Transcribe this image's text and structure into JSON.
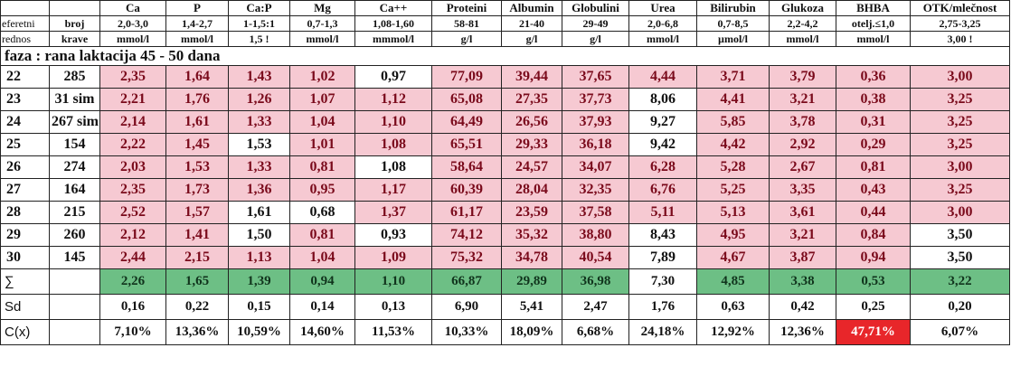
{
  "header": {
    "row1": [
      "",
      "",
      "Ca",
      "P",
      "Ca:P",
      "Mg",
      "Ca++",
      "Proteini",
      "Albumin",
      "Globulini",
      "Urea",
      "Bilirubin",
      "Glukoza",
      "BHBA",
      "OTK/mlečnost"
    ],
    "row2": [
      "eferetni",
      "broj",
      "2,0-3,0",
      "1,4-2,7",
      "1-1,5:1",
      "0,7-1,3",
      "1,08-1,60",
      "58-81",
      "21-40",
      "29-49",
      "2,0-6,8",
      "0,7-8,5",
      "2,2-4,2",
      "otelj.≤1,0",
      "2,75-3,25"
    ],
    "row3": [
      "rednos",
      "krave",
      "mmol/l",
      "mmol/l",
      "1,5 !",
      "mmol/l",
      "mmmol/l",
      "g/l",
      "g/l",
      "g/l",
      "mmol/l",
      "µmol/l",
      "mmol/l",
      "mmol/l",
      "3,00 !"
    ]
  },
  "phase_label": "faza : rana laktacija 45 - 50 dana",
  "rows": [
    {
      "rb": "22",
      "krava": "285",
      "values": [
        "2,35",
        "1,64",
        "1,43",
        "1,02",
        "0,97",
        "77,09",
        "39,44",
        "37,65",
        "4,44",
        "3,71",
        "3,79",
        "0,36",
        "3,00"
      ],
      "highlight": [
        true,
        true,
        true,
        true,
        false,
        true,
        true,
        true,
        true,
        true,
        true,
        true,
        true
      ]
    },
    {
      "rb": "23",
      "krava": "31 sim",
      "values": [
        "2,21",
        "1,76",
        "1,26",
        "1,07",
        "1,12",
        "65,08",
        "27,35",
        "37,73",
        "8,06",
        "4,41",
        "3,21",
        "0,38",
        "3,25"
      ],
      "highlight": [
        true,
        true,
        true,
        true,
        true,
        true,
        true,
        true,
        false,
        true,
        true,
        true,
        true
      ]
    },
    {
      "rb": "24",
      "krava": "267 sim",
      "values": [
        "2,14",
        "1,61",
        "1,33",
        "1,04",
        "1,10",
        "64,49",
        "26,56",
        "37,93",
        "9,27",
        "5,85",
        "3,78",
        "0,31",
        "3,25"
      ],
      "highlight": [
        true,
        true,
        true,
        true,
        true,
        true,
        true,
        true,
        false,
        true,
        true,
        true,
        true
      ]
    },
    {
      "rb": "25",
      "krava": "154",
      "values": [
        "2,22",
        "1,45",
        "1,53",
        "1,01",
        "1,08",
        "65,51",
        "29,33",
        "36,18",
        "9,42",
        "4,42",
        "2,92",
        "0,29",
        "3,25"
      ],
      "highlight": [
        true,
        true,
        false,
        true,
        true,
        true,
        true,
        true,
        false,
        true,
        true,
        true,
        true
      ]
    },
    {
      "rb": "26",
      "krava": "274",
      "values": [
        "2,03",
        "1,53",
        "1,33",
        "0,81",
        "1,08",
        "58,64",
        "24,57",
        "34,07",
        "6,28",
        "5,28",
        "2,67",
        "0,81",
        "3,00"
      ],
      "highlight": [
        true,
        true,
        true,
        true,
        false,
        true,
        true,
        true,
        true,
        true,
        true,
        true,
        true
      ]
    },
    {
      "rb": "27",
      "krava": "164",
      "values": [
        "2,35",
        "1,73",
        "1,36",
        "0,95",
        "1,17",
        "60,39",
        "28,04",
        "32,35",
        "6,76",
        "5,25",
        "3,35",
        "0,43",
        "3,25"
      ],
      "highlight": [
        true,
        true,
        true,
        true,
        true,
        true,
        true,
        true,
        true,
        true,
        true,
        true,
        true
      ]
    },
    {
      "rb": "28",
      "krava": "215",
      "values": [
        "2,52",
        "1,57",
        "1,61",
        "0,68",
        "1,37",
        "61,17",
        "23,59",
        "37,58",
        "5,11",
        "5,13",
        "3,61",
        "0,44",
        "3,00"
      ],
      "highlight": [
        true,
        true,
        false,
        false,
        true,
        true,
        true,
        true,
        true,
        true,
        true,
        true,
        true
      ]
    },
    {
      "rb": "29",
      "krava": "260",
      "values": [
        "2,12",
        "1,41",
        "1,50",
        "0,81",
        "0,93",
        "74,12",
        "35,32",
        "38,80",
        "8,43",
        "4,95",
        "3,21",
        "0,84",
        "3,50"
      ],
      "highlight": [
        true,
        true,
        false,
        true,
        false,
        true,
        true,
        true,
        false,
        true,
        true,
        true,
        false
      ]
    },
    {
      "rb": "30",
      "krava": "145",
      "values": [
        "2,44",
        "2,15",
        "1,13",
        "1,04",
        "1,09",
        "75,32",
        "34,78",
        "40,54",
        "7,89",
        "4,67",
        "3,87",
        "0,94",
        "3,50"
      ],
      "highlight": [
        true,
        true,
        true,
        true,
        true,
        true,
        true,
        true,
        false,
        true,
        true,
        true,
        false
      ]
    }
  ],
  "sum_row": {
    "label": "∑",
    "values": [
      "2,26",
      "1,65",
      "1,39",
      "0,94",
      "1,10",
      "66,87",
      "29,89",
      "36,98",
      "7,30",
      "4,85",
      "3,38",
      "0,53",
      "3,22"
    ],
    "highlight": [
      true,
      true,
      true,
      true,
      true,
      true,
      true,
      true,
      false,
      true,
      true,
      true,
      true
    ]
  },
  "sd_row": {
    "label": "Sd",
    "values": [
      "0,16",
      "0,22",
      "0,15",
      "0,14",
      "0,13",
      "6,90",
      "5,41",
      "2,47",
      "1,76",
      "0,63",
      "0,42",
      "0,25",
      "0,20"
    ]
  },
  "cx_row": {
    "label": "C(x)",
    "values": [
      "7,10%",
      "13,36%",
      "10,59%",
      "14,60%",
      "11,53%",
      "10,33%",
      "18,09%",
      "6,68%",
      "24,18%",
      "12,92%",
      "12,36%",
      "47,71%",
      "6,07%"
    ],
    "alert_index": 11
  },
  "colors": {
    "pink": "#f6c9d2",
    "pink_text": "#7a0a1b",
    "green": "#6dbf85",
    "red": "#e8262a"
  }
}
